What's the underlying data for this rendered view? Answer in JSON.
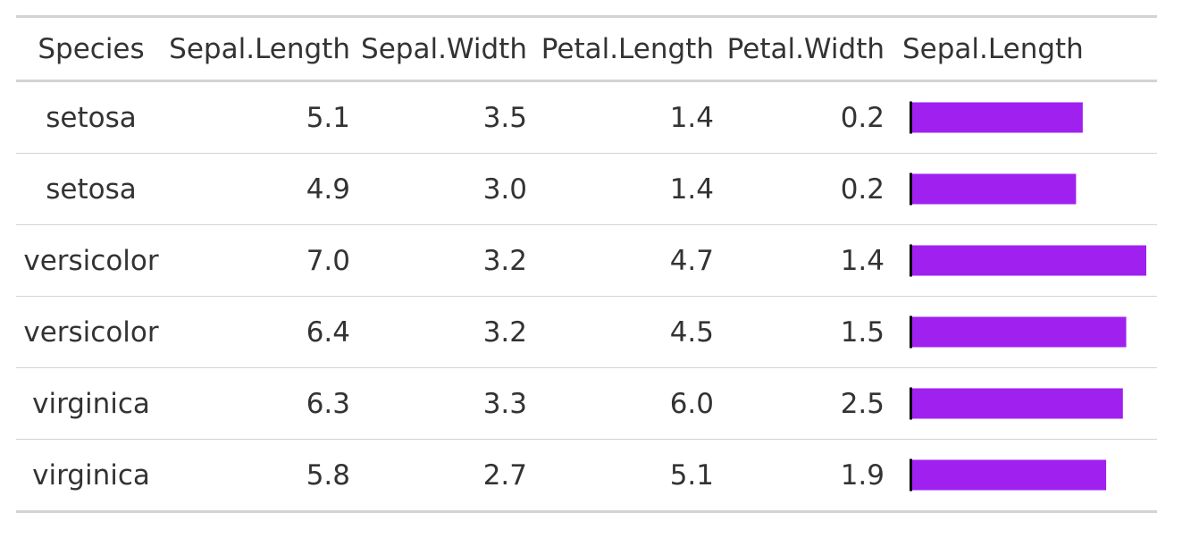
{
  "table": {
    "headers": [
      "Species",
      "Sepal.Length",
      "Sepal.Width",
      "Petal.Length",
      "Petal.Width",
      "Sepal.Length"
    ],
    "rows": [
      {
        "species": "setosa",
        "sepal_length": "5.1",
        "sepal_width": "3.5",
        "petal_length": "1.4",
        "petal_width": "0.2"
      },
      {
        "species": "setosa",
        "sepal_length": "4.9",
        "sepal_width": "3.0",
        "petal_length": "1.4",
        "petal_width": "0.2"
      },
      {
        "species": "versicolor",
        "sepal_length": "7.0",
        "sepal_width": "3.2",
        "petal_length": "4.7",
        "petal_width": "1.4"
      },
      {
        "species": "versicolor",
        "sepal_length": "6.4",
        "sepal_width": "3.2",
        "petal_length": "4.5",
        "petal_width": "1.5"
      },
      {
        "species": "virginica",
        "sepal_length": "6.3",
        "sepal_width": "3.3",
        "petal_length": "6.0",
        "petal_width": "2.5"
      },
      {
        "species": "virginica",
        "sepal_length": "5.8",
        "sepal_width": "2.7",
        "petal_length": "5.1",
        "petal_width": "1.9"
      }
    ]
  },
  "chart_data": {
    "type": "bar",
    "orientation": "horizontal",
    "categories": [
      "setosa",
      "setosa",
      "versicolor",
      "versicolor",
      "virginica",
      "virginica"
    ],
    "values": [
      5.1,
      4.9,
      7.0,
      6.4,
      6.3,
      5.8
    ],
    "xlim": [
      0,
      7.0
    ],
    "bar_color": "#a020f0",
    "axis_color": "#000000"
  }
}
